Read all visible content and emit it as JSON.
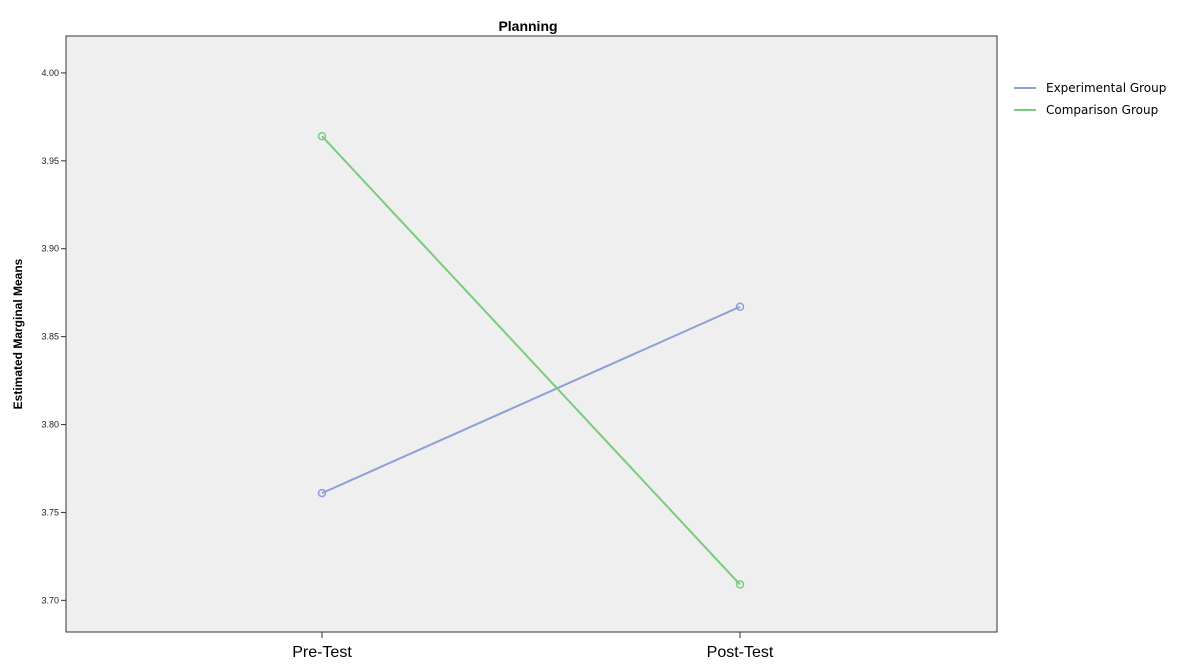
{
  "chart_data": {
    "type": "line",
    "title": "Planning",
    "xlabel": "",
    "ylabel": "Estimated Marginal Means",
    "categories": [
      "Pre-Test",
      "Post-Test"
    ],
    "series": [
      {
        "name": "Experimental Group",
        "values": [
          3.761,
          3.867
        ],
        "color": "#8c9fd8"
      },
      {
        "name": "Comparison Group",
        "values": [
          3.964,
          3.709
        ],
        "color": "#79cc7f"
      }
    ],
    "ylim": [
      3.682,
      4.021
    ],
    "yticks": [
      "3.70",
      "3.75",
      "3.80",
      "3.85",
      "3.90",
      "3.95",
      "4.00"
    ],
    "grid": false,
    "legend": "right",
    "plot_background": "#efefef"
  }
}
